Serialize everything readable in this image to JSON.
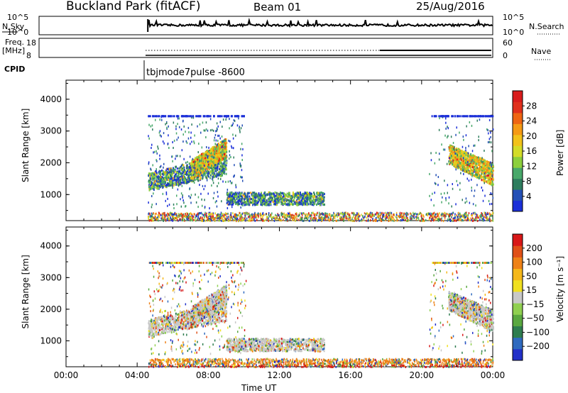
{
  "header": {
    "title": "Buckland Park (fitACF)",
    "beam": "Beam 01",
    "date": "25/Aug/2016"
  },
  "status_panel": {
    "nsky_label": "N.Sky",
    "nsky_ticks": [
      "10^5",
      "10^0"
    ],
    "nsearch_label": "N.Search",
    "nsearch_ticks": [
      "10^5",
      "10^0"
    ],
    "freq_label_1": "Freq.",
    "freq_label_2": "[MHz]",
    "freq_ticks": [
      "18",
      "8"
    ],
    "nave_label": "Nave",
    "nave_ticks": [
      "60",
      "0"
    ],
    "cpid_label": "CPID",
    "cpid_value": "tbjmode7pulse -8600"
  },
  "chart_data": [
    {
      "type": "heatmap",
      "panel": "power",
      "ylabel": "Slant Range [km]",
      "yticks": [
        "4000",
        "3000",
        "2000",
        "1000"
      ],
      "ylim": [
        180,
        4600
      ],
      "xlim_hours": [
        0,
        24
      ],
      "colorbar_label": "Power [dB]",
      "colorbar_ticks": [
        "28",
        "24",
        "20",
        "16",
        "12",
        "8",
        "4"
      ],
      "colorbar_colors": [
        "#1b2fd8",
        "#2450b6",
        "#2e7d5e",
        "#48a86a",
        "#8ccf3c",
        "#d3dc28",
        "#f2c21a",
        "#f59a14",
        "#ee6512",
        "#e0301c",
        "#d81c1c"
      ],
      "echo_regions": [
        {
          "t_start": 4.6,
          "t_end": 9.0,
          "r_low": 1100,
          "r_high": 2200,
          "level": "medium"
        },
        {
          "t_start": 7.0,
          "t_end": 9.0,
          "r_low": 1700,
          "r_high": 2900,
          "level": "strong"
        },
        {
          "t_start": 9.0,
          "t_end": 14.5,
          "r_low": 700,
          "r_high": 1100,
          "level": "medium"
        },
        {
          "t_start": 21.5,
          "t_end": 24.0,
          "r_low": 1300,
          "r_high": 2600,
          "level": "strong"
        }
      ]
    },
    {
      "type": "heatmap",
      "panel": "velocity",
      "ylabel": "Slant Range [km]",
      "yticks": [
        "4000",
        "3000",
        "2000",
        "1000"
      ],
      "ylim": [
        180,
        4600
      ],
      "xlim_hours": [
        0,
        24
      ],
      "xticks": [
        "00:00",
        "04:00",
        "08:00",
        "12:00",
        "16:00",
        "20:00",
        "00:00"
      ],
      "xlabel": "Time UT",
      "colorbar_label": "Velocity [m s⁻¹]",
      "colorbar_ticks": [
        "200",
        "100",
        "50",
        "15",
        "−15",
        "−50",
        "−100",
        "−200"
      ],
      "colorbar_colors": [
        "#2230c8",
        "#2f6abf",
        "#2e7d4f",
        "#5aa840",
        "#90d050",
        "#c8c8c8",
        "#f0e020",
        "#f5b81a",
        "#ee8218",
        "#e05018",
        "#d81818"
      ]
    }
  ]
}
